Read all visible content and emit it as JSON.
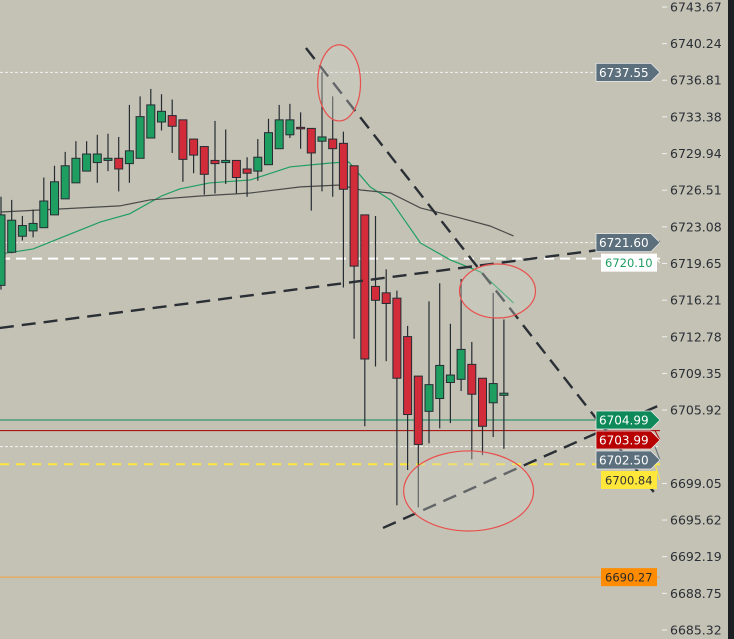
{
  "chart_data": {
    "type": "candlestick",
    "title": "",
    "ylim": [
      6685.32,
      6743.67
    ],
    "y_ticks": [
      "6743.67",
      "6740.24",
      "6736.81",
      "6733.38",
      "6729.94",
      "6726.51",
      "6723.08",
      "6719.65",
      "6716.21",
      "6712.78",
      "6709.35",
      "6705.92",
      "6699.05",
      "6695.62",
      "6692.19",
      "6688.75",
      "6685.32"
    ],
    "colors": {
      "background": "#c4c2b4",
      "up": "#1f9e62",
      "down": "#d22b3a",
      "wick": "#262c33",
      "ma_fast": "#1f9e62",
      "ma_slow": "#4a4a4a",
      "trendline": "#2a2f36",
      "ellipse": "#e8504e"
    },
    "candles": [
      [
        6717.6,
        6725.9,
        6717.2,
        6724.2
      ],
      [
        6720.7,
        6725.6,
        6720.6,
        6723.7
      ],
      [
        6722.2,
        6724.1,
        6721.8,
        6723.2
      ],
      [
        6722.7,
        6724.7,
        6722.1,
        6723.4
      ],
      [
        6723.0,
        6727.7,
        6723.0,
        6725.5
      ],
      [
        6724.2,
        6728.8,
        6724.2,
        6727.3
      ],
      [
        6725.7,
        6730.1,
        6725.7,
        6728.8
      ],
      [
        6727.2,
        6731.1,
        6727.2,
        6729.5
      ],
      [
        6728.3,
        6731.1,
        6728.3,
        6729.9
      ],
      [
        6729.1,
        6731.7,
        6727.2,
        6729.9
      ],
      [
        6729.3,
        6731.8,
        6728.3,
        6729.5
      ],
      [
        6729.5,
        6731.5,
        6726.4,
        6728.5
      ],
      [
        6729.0,
        6734.5,
        6727.2,
        6730.2
      ],
      [
        6729.5,
        6735.3,
        6729.5,
        6733.4
      ],
      [
        6731.4,
        6736.0,
        6731.4,
        6734.5
      ],
      [
        6732.9,
        6735.5,
        6732.1,
        6733.9
      ],
      [
        6733.5,
        6735.0,
        6730.0,
        6732.5
      ],
      [
        6733.1,
        6733.1,
        6727.3,
        6729.4
      ],
      [
        6731.3,
        6731.3,
        6728.1,
        6729.8
      ],
      [
        6730.6,
        6730.6,
        6726.1,
        6728.0
      ],
      [
        6729.3,
        6733.0,
        6726.2,
        6729.0
      ],
      [
        6729.1,
        6732.2,
        6727.1,
        6729.3
      ],
      [
        6729.3,
        6729.3,
        6726.2,
        6727.7
      ],
      [
        6728.5,
        6729.6,
        6725.9,
        6728.1
      ],
      [
        6728.3,
        6731.3,
        6727.4,
        6729.6
      ],
      [
        6728.9,
        6733.2,
        6728.9,
        6731.9
      ],
      [
        6730.4,
        6734.5,
        6730.4,
        6733.1
      ],
      [
        6731.7,
        6734.6,
        6731.4,
        6733.1
      ],
      [
        6732.4,
        6733.8,
        6730.4,
        6732.3
      ],
      [
        6732.3,
        6732.3,
        6724.6,
        6730.0
      ],
      [
        6731.1,
        6737.6,
        6726.4,
        6731.5
      ],
      [
        6731.3,
        6735.3,
        6725.9,
        6730.4
      ],
      [
        6730.9,
        6732.0,
        6717.4,
        6726.6
      ],
      [
        6728.8,
        6728.8,
        6712.6,
        6719.4
      ],
      [
        6724.2,
        6724.2,
        6704.4,
        6710.7
      ],
      [
        6717.5,
        6724.1,
        6710.0,
        6716.2
      ],
      [
        6716.9,
        6719.1,
        6710.5,
        6715.9
      ],
      [
        6716.4,
        6717.1,
        6697.0,
        6708.9
      ],
      [
        6712.8,
        6713.8,
        6700.3,
        6705.5
      ],
      [
        6709.1,
        6709.1,
        6696.8,
        6702.7
      ],
      [
        6705.8,
        6716.1,
        6702.8,
        6708.3
      ],
      [
        6707.0,
        6717.8,
        6704.2,
        6710.1
      ],
      [
        6708.5,
        6714.0,
        6704.7,
        6709.2
      ],
      [
        6708.8,
        6718.2,
        6707.7,
        6711.6
      ],
      [
        6710.2,
        6712.3,
        6701.3,
        6707.4
      ],
      [
        6708.9,
        6708.9,
        6701.7,
        6704.4
      ],
      [
        6706.6,
        6716.9,
        6703.4,
        6708.4
      ],
      [
        6707.3,
        6714.4,
        6702.3,
        6707.5
      ]
    ],
    "ma_fast": [
      [
        0,
        6720.54
      ],
      [
        3,
        6721.01
      ],
      [
        6.5,
        6722.41
      ],
      [
        9.3,
        6723.54
      ],
      [
        12,
        6724.29
      ],
      [
        15,
        6725.97
      ],
      [
        16.7,
        6726.63
      ],
      [
        19.5,
        6727.19
      ],
      [
        23.3,
        6727.47
      ],
      [
        27,
        6728.69
      ],
      [
        30.8,
        6729.06
      ],
      [
        32.5,
        6729.16
      ],
      [
        34.5,
        6726.82
      ],
      [
        36.4,
        6725.6
      ],
      [
        39.2,
        6721.57
      ],
      [
        42,
        6719.98
      ],
      [
        44.8,
        6718.86
      ],
      [
        47.9,
        6715.95
      ]
    ],
    "ma_slow": [
      [
        0,
        6724.47
      ],
      [
        11.1,
        6725.04
      ],
      [
        13.9,
        6725.6
      ],
      [
        18.6,
        6725.97
      ],
      [
        23.3,
        6726.25
      ],
      [
        28,
        6726.82
      ],
      [
        31.7,
        6727.0
      ],
      [
        33.6,
        6726.53
      ],
      [
        36.4,
        6726.25
      ],
      [
        39.2,
        6724.85
      ],
      [
        42.9,
        6723.91
      ],
      [
        45.7,
        6723.16
      ],
      [
        47.9,
        6722.23
      ]
    ],
    "trendlines": [
      [
        [
          28.5,
          6739.83
        ],
        [
          61.3,
          6697.87
        ]
      ],
      [
        [
          -0.1,
          6713.61
        ],
        [
          61.6,
          6721.66
        ]
      ],
      [
        [
          35.7,
          6694.88
        ],
        [
          61.6,
          6706.4
        ]
      ]
    ],
    "ellipses": [
      {
        "center": [
          31.6,
          6736.56
        ],
        "rx": 2.0,
        "ry": 3.56
      },
      {
        "center": [
          46.4,
          6717.07
        ],
        "rx": 3.55,
        "ry": 2.53
      },
      {
        "center": [
          43.7,
          6698.34
        ],
        "rx": 6.07,
        "ry": 3.75
      }
    ],
    "levels": [
      {
        "price": "6737.55",
        "style": "dotted",
        "color": "#f2f2f2",
        "label_bg": "#5b6f7d",
        "label_fg": "#ffffff",
        "kind": "axis"
      },
      {
        "price": "6721.60",
        "style": "dotted",
        "color": "#f2f2f2",
        "label_bg": "#5b6f7d",
        "label_fg": "#ffffff",
        "kind": "axis"
      },
      {
        "price": "6720.10",
        "style": "dashed",
        "color": "#ffffff",
        "label_bg": "#ffffff",
        "label_fg": "#1f9e62",
        "kind": "inner"
      },
      {
        "price": "6704.99",
        "style": "solid",
        "color": "#0e8a5a",
        "label_bg": "#0e8a5a",
        "label_fg": "#ffffff",
        "kind": "axis"
      },
      {
        "price": "6703.99",
        "style": "solid",
        "color": "#a80000",
        "label_bg": "#b80000",
        "label_fg": "#ffffff",
        "kind": "axis"
      },
      {
        "price": "6702.50",
        "style": "dotted",
        "color": "#f2f2f2",
        "label_bg": "#5b6f7d",
        "label_fg": "#ffffff",
        "kind": "axis"
      },
      {
        "price": "6700.84",
        "style": "dashed",
        "color": "#ffe83a",
        "label_bg": "#ffe83a",
        "label_fg": "#333333",
        "kind": "inner"
      },
      {
        "price": "6690.27",
        "style": "solid",
        "color": "#f0a040",
        "label_bg": "#ff8c00",
        "label_fg": "#2a2a2a",
        "kind": "inner"
      }
    ]
  }
}
